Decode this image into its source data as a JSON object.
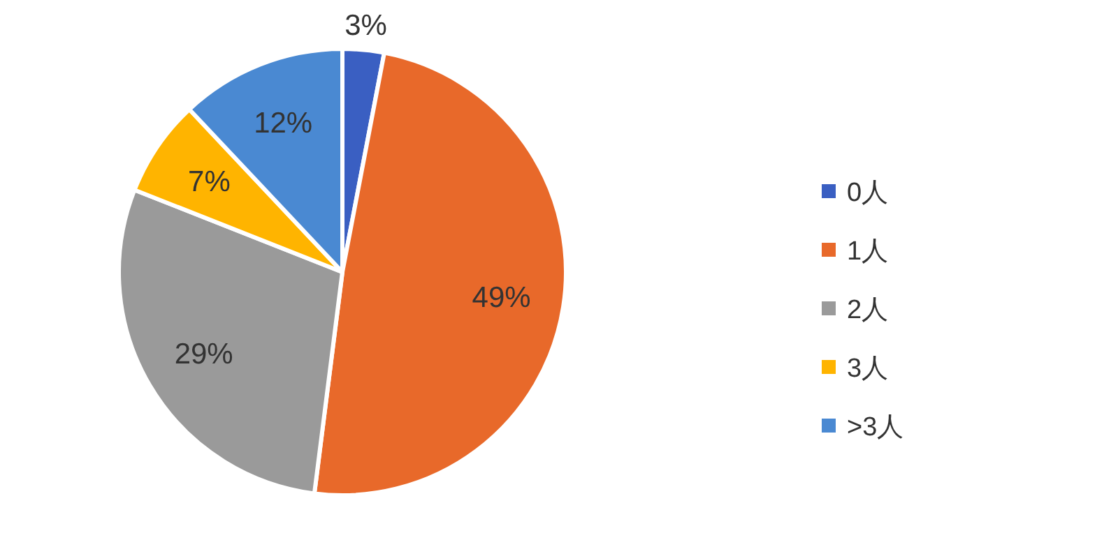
{
  "chart_data": {
    "type": "pie",
    "categories": [
      "0人",
      "1人",
      "2人",
      "3人",
      ">3人"
    ],
    "values": [
      3,
      49,
      29,
      7,
      12
    ],
    "value_labels": [
      "3%",
      "49%",
      "29%",
      "7%",
      "12%"
    ],
    "colors": [
      "#3a5fc2",
      "#e8692a",
      "#9a9a9a",
      "#ffb400",
      "#4a89d2"
    ],
    "legend": "right"
  }
}
